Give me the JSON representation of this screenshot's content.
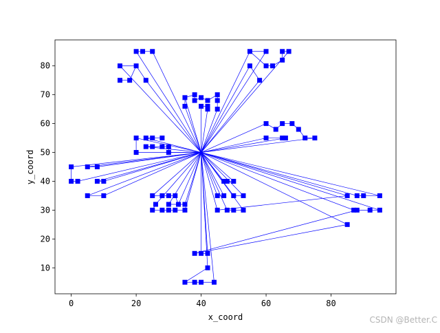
{
  "chart_data": {
    "type": "line",
    "title": "",
    "xlabel": "x_coord",
    "ylabel": "y_coord",
    "xlim": [
      -5,
      100
    ],
    "ylim": [
      1,
      89
    ],
    "xticks": [
      0,
      20,
      40,
      60,
      80
    ],
    "yticks": [
      10,
      20,
      30,
      40,
      50,
      60,
      70,
      80
    ],
    "grid": false,
    "legend": "none",
    "depot": [
      40,
      50
    ],
    "color": "#0000ff",
    "customers": [
      [
        20,
        85
      ],
      [
        22,
        85
      ],
      [
        25,
        85
      ],
      [
        15,
        80
      ],
      [
        20,
        80
      ],
      [
        15,
        75
      ],
      [
        18,
        75
      ],
      [
        23,
        75
      ],
      [
        55,
        85
      ],
      [
        60,
        85
      ],
      [
        65,
        85
      ],
      [
        67,
        85
      ],
      [
        55,
        80
      ],
      [
        60,
        80
      ],
      [
        62,
        80
      ],
      [
        65,
        82
      ],
      [
        58,
        75
      ],
      [
        35,
        69
      ],
      [
        35,
        66
      ],
      [
        38,
        70
      ],
      [
        38,
        68
      ],
      [
        40,
        69
      ],
      [
        40,
        66
      ],
      [
        42,
        68
      ],
      [
        42,
        66
      ],
      [
        42,
        65
      ],
      [
        45,
        70
      ],
      [
        45,
        68
      ],
      [
        45,
        65
      ],
      [
        60,
        60
      ],
      [
        63,
        58
      ],
      [
        65,
        60
      ],
      [
        68,
        60
      ],
      [
        70,
        58
      ],
      [
        60,
        55
      ],
      [
        65,
        55
      ],
      [
        66,
        55
      ],
      [
        72,
        55
      ],
      [
        75,
        55
      ],
      [
        20,
        55
      ],
      [
        23,
        55
      ],
      [
        25,
        55
      ],
      [
        28,
        55
      ],
      [
        20,
        50
      ],
      [
        23,
        52
      ],
      [
        25,
        52
      ],
      [
        28,
        52
      ],
      [
        30,
        52
      ],
      [
        30,
        50
      ],
      [
        0,
        45
      ],
      [
        5,
        45
      ],
      [
        8,
        45
      ],
      [
        0,
        40
      ],
      [
        2,
        40
      ],
      [
        8,
        40
      ],
      [
        10,
        40
      ],
      [
        5,
        35
      ],
      [
        10,
        35
      ],
      [
        25,
        35
      ],
      [
        28,
        35
      ],
      [
        30,
        35
      ],
      [
        32,
        35
      ],
      [
        26,
        32
      ],
      [
        30,
        32
      ],
      [
        33,
        32
      ],
      [
        35,
        32
      ],
      [
        25,
        30
      ],
      [
        28,
        30
      ],
      [
        30,
        30
      ],
      [
        32,
        30
      ],
      [
        35,
        30
      ],
      [
        47,
        40
      ],
      [
        48,
        40
      ],
      [
        50,
        40
      ],
      [
        45,
        35
      ],
      [
        47,
        35
      ],
      [
        50,
        35
      ],
      [
        53,
        35
      ],
      [
        45,
        30
      ],
      [
        48,
        30
      ],
      [
        50,
        30
      ],
      [
        53,
        30
      ],
      [
        85,
        35
      ],
      [
        88,
        35
      ],
      [
        90,
        35
      ],
      [
        95,
        35
      ],
      [
        87,
        30
      ],
      [
        88,
        30
      ],
      [
        92,
        30
      ],
      [
        95,
        30
      ],
      [
        85,
        25
      ],
      [
        38,
        15
      ],
      [
        40,
        15
      ],
      [
        42,
        15
      ],
      [
        42,
        10
      ],
      [
        35,
        5
      ],
      [
        38,
        5
      ],
      [
        40,
        5
      ],
      [
        44,
        5
      ]
    ],
    "edges": [
      [
        0,
        1
      ],
      [
        1,
        2
      ],
      [
        3,
        4
      ],
      [
        5,
        6
      ],
      [
        6,
        4
      ],
      [
        7,
        4
      ],
      [
        8,
        13
      ],
      [
        9,
        8
      ],
      [
        10,
        11
      ],
      [
        10,
        15
      ],
      [
        15,
        14
      ],
      [
        14,
        13
      ],
      [
        16,
        12
      ],
      [
        17,
        19
      ],
      [
        18,
        17
      ],
      [
        19,
        20
      ],
      [
        20,
        21
      ],
      [
        21,
        23
      ],
      [
        22,
        24
      ],
      [
        23,
        26
      ],
      [
        24,
        25
      ],
      [
        26,
        27
      ],
      [
        27,
        28
      ],
      [
        29,
        30
      ],
      [
        30,
        31
      ],
      [
        31,
        32
      ],
      [
        32,
        33
      ],
      [
        33,
        37
      ],
      [
        34,
        35
      ],
      [
        35,
        36
      ],
      [
        37,
        38
      ],
      [
        39,
        43
      ],
      [
        40,
        41
      ],
      [
        41,
        42
      ],
      [
        44,
        45
      ],
      [
        45,
        46
      ],
      [
        46,
        47
      ],
      [
        47,
        48
      ],
      [
        49,
        52
      ],
      [
        50,
        51
      ],
      [
        52,
        53
      ],
      [
        54,
        55
      ],
      [
        56,
        57
      ],
      [
        58,
        59
      ],
      [
        59,
        60
      ],
      [
        60,
        61
      ],
      [
        61,
        64
      ],
      [
        62,
        66
      ],
      [
        63,
        65
      ],
      [
        66,
        67
      ],
      [
        67,
        68
      ],
      [
        68,
        69
      ],
      [
        69,
        70
      ],
      [
        71,
        72
      ],
      [
        72,
        73
      ],
      [
        74,
        75
      ],
      [
        76,
        77
      ],
      [
        78,
        82
      ],
      [
        79,
        80
      ],
      [
        80,
        81
      ],
      [
        83,
        84
      ],
      [
        84,
        85
      ],
      [
        87,
        88
      ],
      [
        88,
        89
      ],
      [
        90,
        91
      ],
      [
        91,
        87
      ],
      [
        92,
        93
      ],
      [
        94,
        95
      ],
      [
        95,
        96
      ],
      [
        96,
        97
      ],
      [
        97,
        98
      ]
    ],
    "depot_edges": [
      0,
      2,
      3,
      7,
      8,
      9,
      11,
      12,
      16,
      17,
      18,
      22,
      25,
      28,
      29,
      34,
      36,
      38,
      39,
      40,
      43,
      44,
      48,
      49,
      50,
      51,
      53,
      54,
      55,
      56,
      57,
      58,
      62,
      63,
      64,
      65,
      70,
      71,
      73,
      74,
      75,
      76,
      77,
      78,
      79,
      81,
      82,
      83,
      85,
      86,
      89,
      90,
      92,
      93,
      94,
      98
    ]
  },
  "watermark": "CSDN @Better.C"
}
